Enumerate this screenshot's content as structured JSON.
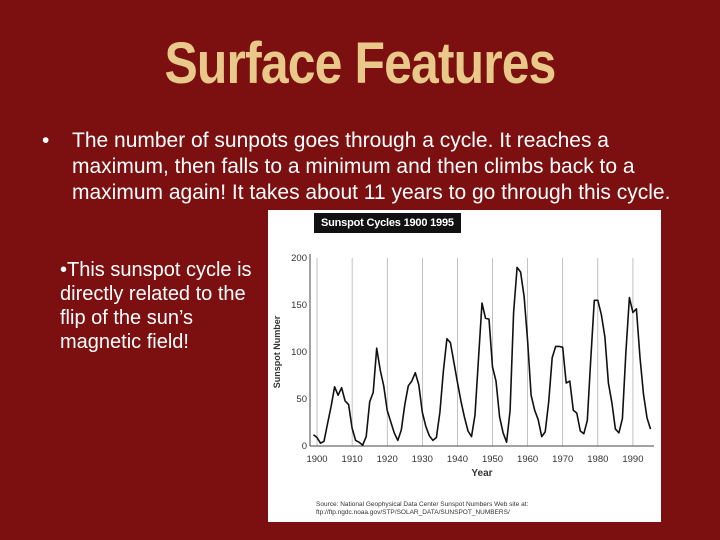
{
  "slide": {
    "title": "Surface Features",
    "bullet_symbol": "•",
    "main_bullet": "The number of sunpots goes through a cycle.  It reaches a maximum, then falls to a minimum and then climbs back to a maximum again!  It takes about 11 years to go through this cycle.",
    "sub_bullet": "•This sunspot cycle is directly related to the flip of the sun’s magnetic field!"
  },
  "figure": {
    "title": "Sunspot Cycles 1900  1995",
    "source": "Source: National Geophysical Data Center Sunspot Numbers Web site at: ftp://ftp.ngdc.noaa.gov/STP/SOLAR_DATA/SUNSPOT_NUMBERS/"
  },
  "chart_data": {
    "type": "line",
    "xlabel": "Year",
    "ylabel": "Sunspot Number",
    "xlim": [
      1898,
      1996
    ],
    "ylim": [
      0,
      200
    ],
    "xticks": [
      1900,
      1910,
      1920,
      1930,
      1940,
      1950,
      1960,
      1970,
      1980,
      1990
    ],
    "yticks": [
      0,
      50,
      100,
      150,
      200
    ],
    "grid": "vertical",
    "line_color": "#111111",
    "x": [
      1899,
      1900,
      1901,
      1902,
      1903,
      1904,
      1905,
      1906,
      1907,
      1908,
      1909,
      1910,
      1911,
      1912,
      1913,
      1914,
      1915,
      1916,
      1917,
      1918,
      1919,
      1920,
      1921,
      1922,
      1923,
      1924,
      1925,
      1926,
      1927,
      1928,
      1929,
      1930,
      1931,
      1932,
      1933,
      1934,
      1935,
      1936,
      1937,
      1938,
      1939,
      1940,
      1941,
      1942,
      1943,
      1944,
      1945,
      1946,
      1947,
      1948,
      1949,
      1950,
      1951,
      1952,
      1953,
      1954,
      1955,
      1956,
      1957,
      1958,
      1959,
      1960,
      1961,
      1962,
      1963,
      1964,
      1965,
      1966,
      1967,
      1968,
      1969,
      1970,
      1971,
      1972,
      1973,
      1974,
      1975,
      1976,
      1977,
      1978,
      1979,
      1980,
      1981,
      1982,
      1983,
      1984,
      1985,
      1986,
      1987,
      1988,
      1989,
      1990,
      1991,
      1992,
      1993,
      1994,
      1995
    ],
    "values": [
      12,
      9,
      3,
      5,
      24,
      42,
      63,
      54,
      62,
      48,
      44,
      19,
      6,
      4,
      1,
      10,
      47,
      57,
      104,
      81,
      64,
      38,
      26,
      14,
      6,
      17,
      44,
      64,
      69,
      78,
      65,
      36,
      21,
      11,
      6,
      9,
      36,
      80,
      114,
      110,
      89,
      68,
      48,
      31,
      16,
      10,
      33,
      93,
      152,
      136,
      135,
      84,
      69,
      31,
      14,
      4,
      38,
      142,
      190,
      185,
      159,
      112,
      54,
      38,
      28,
      10,
      15,
      47,
      94,
      106,
      106,
      105,
      67,
      69,
      38,
      35,
      16,
      13,
      27,
      93,
      155,
      155,
      140,
      116,
      67,
      46,
      18,
      14,
      29,
      100,
      158,
      142,
      146,
      94,
      55,
      30,
      18
    ]
  }
}
